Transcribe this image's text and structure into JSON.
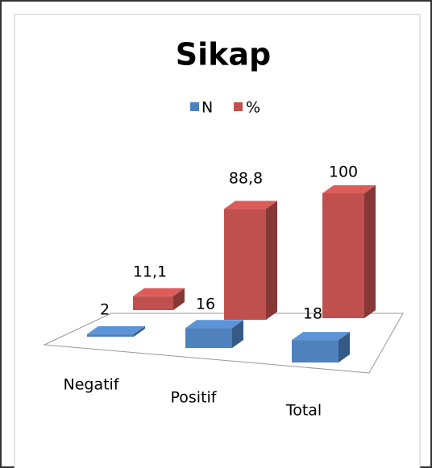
{
  "chart_data": {
    "type": "bar3d",
    "title": "Sikap",
    "categories": [
      "Negatif",
      "Positif",
      "Total"
    ],
    "series": [
      {
        "name": "N",
        "color": "#4f81bd",
        "values": [
          2,
          16,
          18
        ]
      },
      {
        "name": "%",
        "color": "#c0504d",
        "values": [
          11.1,
          88.8,
          100
        ],
        "value_labels": [
          "11,1",
          "88,8",
          "100"
        ]
      }
    ],
    "legend": "top"
  }
}
